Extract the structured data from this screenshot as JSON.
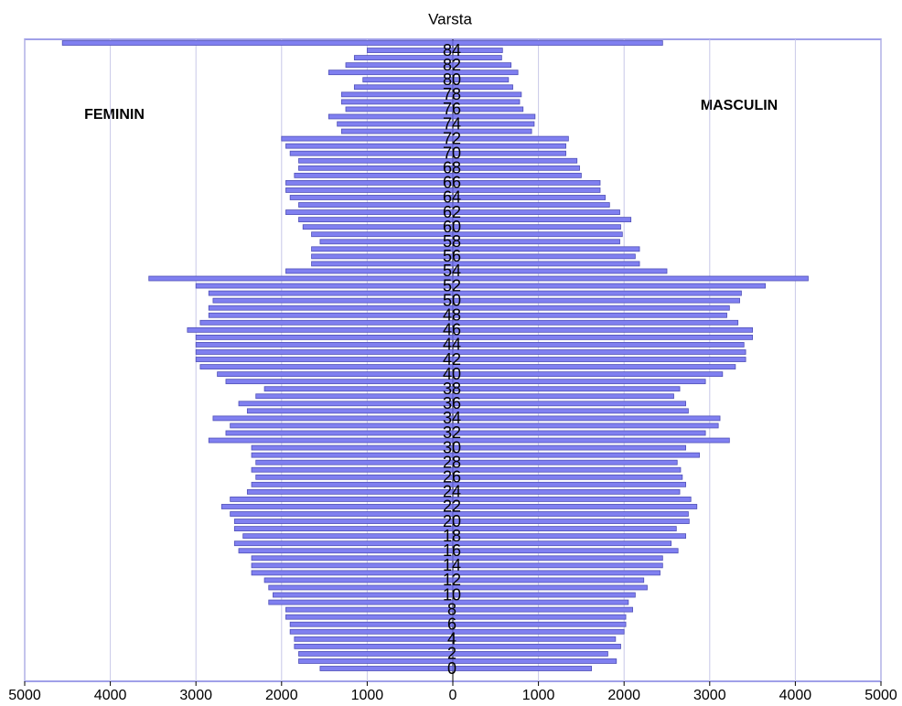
{
  "chart_data": {
    "type": "pyramid",
    "title": "Varsta",
    "categories": [
      "0",
      null,
      "2",
      null,
      "4",
      null,
      "6",
      null,
      "8",
      null,
      "10",
      null,
      "12",
      null,
      "14",
      null,
      "16",
      null,
      "18",
      null,
      "20",
      null,
      "22",
      null,
      "24",
      null,
      "26",
      null,
      "28",
      null,
      "30",
      null,
      "32",
      null,
      "34",
      null,
      "36",
      null,
      "38",
      null,
      "40",
      null,
      "42",
      null,
      "44",
      null,
      "46",
      null,
      "48",
      null,
      "50",
      null,
      "52",
      null,
      "54",
      null,
      "56",
      null,
      "58",
      null,
      "60",
      null,
      "62",
      null,
      "64",
      null,
      "66",
      null,
      "68",
      null,
      "70",
      null,
      "72",
      null,
      "74",
      null,
      "76",
      null,
      "78",
      null,
      "80",
      null,
      "82",
      null,
      "84",
      null
    ],
    "series": [
      {
        "name": "FEMININ",
        "side": "left",
        "color": "#8080f0",
        "values": [
          1550,
          1800,
          1800,
          1850,
          1850,
          1900,
          1900,
          1950,
          1950,
          2150,
          2100,
          2150,
          2200,
          2350,
          2350,
          2350,
          2500,
          2550,
          2450,
          2550,
          2550,
          2600,
          2700,
          2600,
          2400,
          2350,
          2300,
          2350,
          2300,
          2350,
          2350,
          2850,
          2650,
          2600,
          2800,
          2400,
          2500,
          2300,
          2200,
          2650,
          2750,
          2950,
          3000,
          3000,
          3000,
          3000,
          3100,
          2950,
          2850,
          2850,
          2800,
          2850,
          3000,
          3550,
          1950,
          1650,
          1650,
          1650,
          1550,
          1650,
          1750,
          1800,
          1950,
          1800,
          1900,
          1950,
          1950,
          1850,
          1800,
          1800,
          1900,
          1950,
          2000,
          1300,
          1350,
          1450,
          1250,
          1300,
          1300,
          1150,
          1050,
          1450,
          1250,
          1150,
          1000,
          4560
        ]
      },
      {
        "name": "MASCULIN",
        "side": "right",
        "color": "#8080f0",
        "values": [
          1620,
          1910,
          1810,
          1960,
          1900,
          2000,
          2020,
          2020,
          2100,
          2050,
          2130,
          2270,
          2230,
          2420,
          2450,
          2450,
          2630,
          2550,
          2720,
          2610,
          2760,
          2750,
          2850,
          2780,
          2650,
          2720,
          2680,
          2660,
          2620,
          2880,
          2720,
          3230,
          2950,
          3100,
          3120,
          2750,
          2720,
          2580,
          2650,
          2950,
          3150,
          3300,
          3420,
          3420,
          3400,
          3500,
          3500,
          3330,
          3200,
          3230,
          3350,
          3370,
          3650,
          4150,
          2500,
          2180,
          2130,
          2180,
          1950,
          1980,
          1960,
          2080,
          1950,
          1830,
          1780,
          1720,
          1720,
          1500,
          1480,
          1450,
          1320,
          1320,
          1350,
          920,
          950,
          960,
          820,
          780,
          800,
          700,
          650,
          760,
          680,
          570,
          580,
          2450
        ]
      }
    ],
    "xlim": [
      -5000,
      5000
    ],
    "xticks": [
      {
        "value": -5000,
        "label": "5000"
      },
      {
        "value": -4000,
        "label": "4000"
      },
      {
        "value": -3000,
        "label": "3000"
      },
      {
        "value": -2000,
        "label": "2000"
      },
      {
        "value": -1000,
        "label": "1000"
      },
      0,
      1000,
      2000,
      3000,
      4000,
      5000
    ],
    "grid": true
  }
}
